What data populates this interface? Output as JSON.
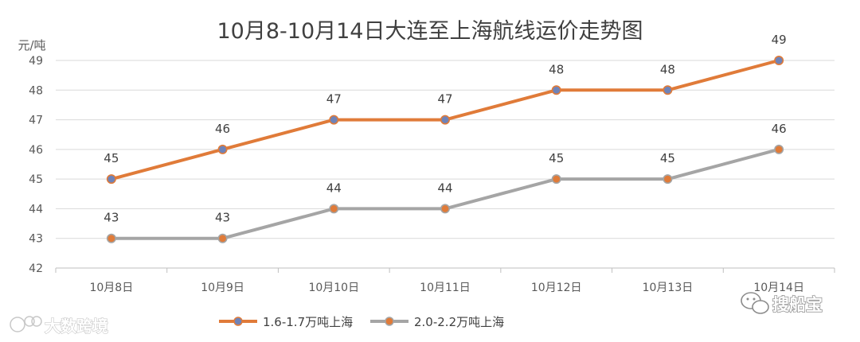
{
  "colors": {
    "series_1": "#E07B39",
    "series_2": "#A5A5A5",
    "marker_1_fill": "#6F83B8",
    "marker_2_fill": "#E07B39",
    "grid": "#D9D9D9",
    "axis": "#BFBFBF"
  },
  "watermark": {
    "left_text": "大数跨境",
    "right_text": "搜船宝"
  },
  "chart_data": {
    "type": "line",
    "title": "10月8-10月14日大连至上海航线运价走势图",
    "ylabel": "元/吨",
    "categories": [
      "10月8日",
      "10月9日",
      "10月10日",
      "10月11日",
      "10月12日",
      "10月13日",
      "10月14日"
    ],
    "ylim": [
      42,
      49
    ],
    "yticks": [
      "42",
      "43",
      "44",
      "45",
      "46",
      "47",
      "48",
      "49"
    ],
    "grid": true,
    "legend_position": "bottom",
    "series": [
      {
        "name": "1.6-1.7万吨上海",
        "values": [
          45,
          46,
          47,
          47,
          48,
          48,
          49
        ]
      },
      {
        "name": "2.0-2.2万吨上海",
        "values": [
          43,
          43,
          44,
          44,
          45,
          45,
          46
        ]
      }
    ]
  }
}
